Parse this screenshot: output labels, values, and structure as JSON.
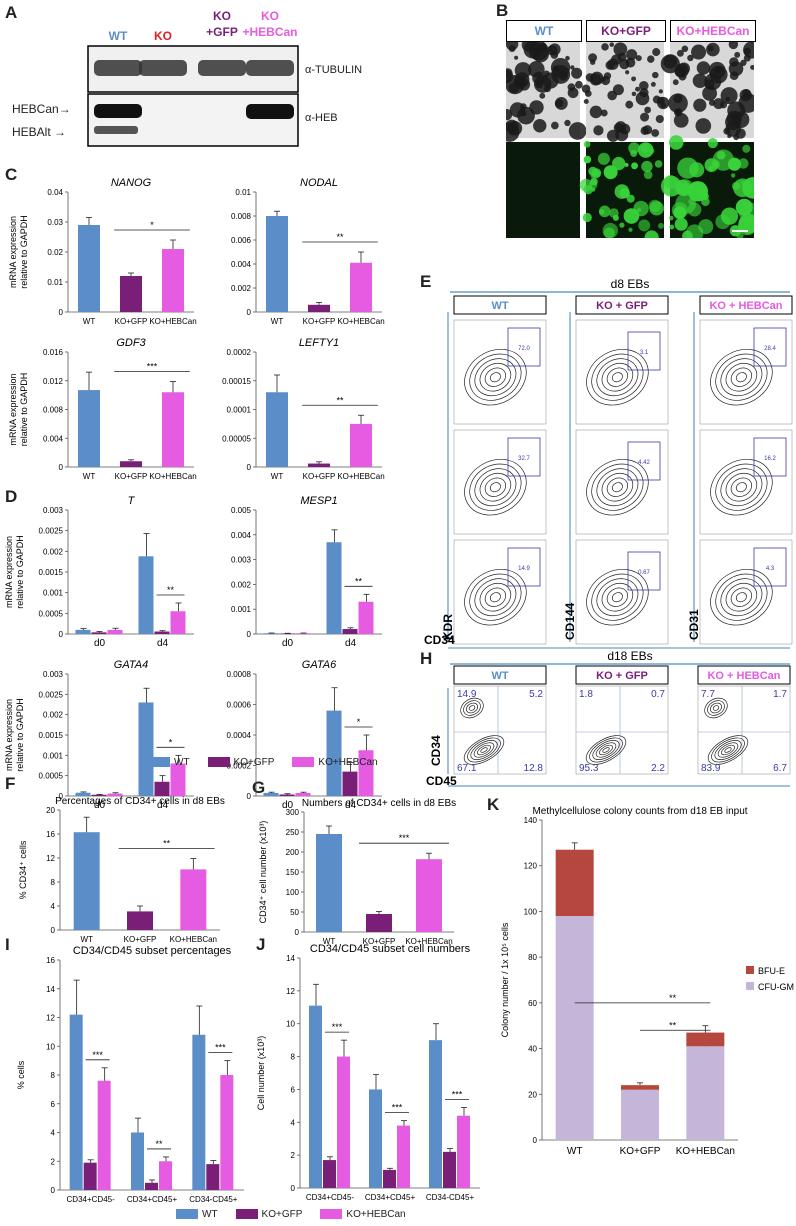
{
  "colors": {
    "wt": "#5b8ec9",
    "ko_gfp": "#7a1f78",
    "ko_hebcan": "#e55be1",
    "bfu": "#b5473f",
    "cfu": "#c5b5d8"
  },
  "panels": {
    "A": "A",
    "B": "B",
    "C": "C",
    "D": "D",
    "E": "E",
    "F": "F",
    "G": "G",
    "H": "H",
    "I": "I",
    "J": "J",
    "K": "K"
  },
  "panelA": {
    "lanes": [
      "WT",
      "KO",
      "KO\n+GFP",
      "KO\n+HEBCan"
    ],
    "lane_colors": [
      "#5b8ec9",
      "#e02020",
      "#7a1f78",
      "#e55be1"
    ],
    "antibodies": [
      "α-TUBULIN",
      "α-HEB"
    ],
    "bands": [
      "HEBCan",
      "HEBAlt"
    ]
  },
  "panelB": {
    "headers": [
      "WT",
      "KO+GFP",
      "KO+HEBCan"
    ]
  },
  "panelE": {
    "title": "d8 EBs",
    "headers": [
      "WT",
      "KO + GFP",
      "KO + HEBCan"
    ],
    "yaxes": [
      "KDR",
      "CD144",
      "CD31"
    ],
    "xaxis": "CD34",
    "gate_values": [
      [
        "72.0",
        "3.1",
        "28.4"
      ],
      [
        "32.7",
        "4.42",
        "16.2"
      ],
      [
        "14.9",
        "0.67",
        "4.3"
      ]
    ]
  },
  "panelH": {
    "title": "d18 EBs",
    "headers": [
      "WT",
      "KO + GFP",
      "KO + HEBCan"
    ],
    "yaxis": "CD34",
    "xaxis": "CD45",
    "quadrants": [
      [
        "14.9",
        "5.2",
        "67.1",
        "12.8"
      ],
      [
        "1.8",
        "0.7",
        "95.3",
        "2.2"
      ],
      [
        "7.7",
        "1.7",
        "83.9",
        "6.7"
      ]
    ]
  },
  "chart_data": [
    {
      "type": "bar",
      "title": "NANOG",
      "categories": [
        "WT",
        "KO+GFP",
        "KO+HEBCan"
      ],
      "values": [
        0.029,
        0.012,
        0.021
      ],
      "errors": [
        0.0025,
        0.001,
        0.003
      ],
      "ylim": [
        0,
        0.04
      ],
      "yticks": [
        "0",
        "0.01",
        "0.02",
        "0.03",
        "0.04"
      ],
      "ylabel": "mRNA expression relative to GAPDH",
      "sig": "*"
    },
    {
      "type": "bar",
      "title": "NODAL",
      "categories": [
        "WT",
        "KO+GFP",
        "KO+HEBCan"
      ],
      "values": [
        0.008,
        0.0006,
        0.0041
      ],
      "errors": [
        0.0004,
        0.0002,
        0.0009
      ],
      "ylim": [
        0,
        0.01
      ],
      "yticks": [
        "0",
        "0.002",
        "0.004",
        "0.006",
        "0.008",
        "0.01"
      ],
      "sig": "**"
    },
    {
      "type": "bar",
      "title": "GDF3",
      "categories": [
        "WT",
        "KO+GFP",
        "KO+HEBCan"
      ],
      "values": [
        0.0107,
        0.0008,
        0.0104
      ],
      "errors": [
        0.0025,
        0.0002,
        0.0015
      ],
      "ylim": [
        0,
        0.016
      ],
      "yticks": [
        "0",
        "0.004",
        "0.008",
        "0.012",
        "0.016"
      ],
      "ylabel": "mRNA expression relative to GAPDH",
      "sig": "***"
    },
    {
      "type": "bar",
      "title": "LEFTY1",
      "categories": [
        "WT",
        "KO+GFP",
        "KO+HEBCan"
      ],
      "values": [
        0.00013,
        6e-06,
        7.5e-05
      ],
      "errors": [
        3e-05,
        3e-06,
        1.5e-05
      ],
      "ylim": [
        0,
        0.0002
      ],
      "yticks": [
        "0",
        "0.00005",
        "0.0001",
        "0.00015",
        "0.0002"
      ],
      "sig": "**"
    },
    {
      "type": "bar",
      "title": "T",
      "categories": [
        "d0",
        "d4"
      ],
      "series": [
        {
          "name": "WT",
          "values": [
            0.0001,
            0.00188
          ],
          "errors": [
            3e-05,
            0.00055
          ]
        },
        {
          "name": "KO+GFP",
          "values": [
            4e-05,
            6e-05
          ],
          "errors": [
            2e-05,
            2e-05
          ]
        },
        {
          "name": "KO+HEBCan",
          "values": [
            0.0001,
            0.00055
          ],
          "errors": [
            4e-05,
            0.0002
          ]
        }
      ],
      "ylim": [
        0,
        0.003
      ],
      "yticks": [
        "0",
        "0.0005",
        "0.001",
        "0.0015",
        "0.002",
        "0.0025",
        "0.003"
      ],
      "ylabel": "mRNA expression relative to GAPDH",
      "sig": "**"
    },
    {
      "type": "bar",
      "title": "MESP1",
      "categories": [
        "d0",
        "d4"
      ],
      "series": [
        {
          "name": "WT",
          "values": [
            3e-05,
            0.0037
          ],
          "errors": [
            1e-05,
            0.0005
          ]
        },
        {
          "name": "KO+GFP",
          "values": [
            2e-05,
            0.0002
          ],
          "errors": [
            1e-05,
            5e-05
          ]
        },
        {
          "name": "KO+HEBCan",
          "values": [
            3e-05,
            0.0013
          ],
          "errors": [
            1e-05,
            0.0003
          ]
        }
      ],
      "ylim": [
        0,
        0.005
      ],
      "yticks": [
        "0",
        "0.001",
        "0.002",
        "0.003",
        "0.004",
        "0.005"
      ],
      "sig": "**"
    },
    {
      "type": "bar",
      "title": "GATA4",
      "categories": [
        "d0",
        "d4"
      ],
      "series": [
        {
          "name": "WT",
          "values": [
            8e-05,
            0.0023
          ],
          "errors": [
            2e-05,
            0.00035
          ]
        },
        {
          "name": "KO+GFP",
          "values": [
            3e-05,
            0.00035
          ],
          "errors": [
            1e-05,
            0.00015
          ]
        },
        {
          "name": "KO+HEBCan",
          "values": [
            6e-05,
            0.0008
          ],
          "errors": [
            2e-05,
            0.0002
          ]
        }
      ],
      "ylim": [
        0,
        0.003
      ],
      "yticks": [
        "0",
        "0.0005",
        "0.001",
        "0.0015",
        "0.002",
        "0.0025",
        "0.003"
      ],
      "ylabel": "mRNA expression relative to GAPDH",
      "sig": "*"
    },
    {
      "type": "bar",
      "title": "GATA6",
      "categories": [
        "d0",
        "d4"
      ],
      "series": [
        {
          "name": "WT",
          "values": [
            2e-05,
            0.00056
          ],
          "errors": [
            5e-06,
            0.00015
          ]
        },
        {
          "name": "KO+GFP",
          "values": [
            1e-05,
            0.00016
          ],
          "errors": [
            5e-06,
            6e-05
          ]
        },
        {
          "name": "KO+HEBCan",
          "values": [
            2e-05,
            0.0003
          ],
          "errors": [
            5e-06,
            0.0001
          ]
        }
      ],
      "ylim": [
        0,
        0.0008
      ],
      "yticks": [
        "0",
        "0.0002",
        "0.0004",
        "0.0006",
        "0.0008"
      ],
      "sig": "*"
    },
    {
      "type": "bar",
      "title": "Percentages of CD34+ cells in d8 EBs",
      "categories": [
        "WT",
        "KO+GFP",
        "KO+HEBCan"
      ],
      "values": [
        16.3,
        3.1,
        10.1
      ],
      "errors": [
        2.5,
        0.9,
        1.8
      ],
      "ylim": [
        0,
        20
      ],
      "yticks": [
        "0",
        "4",
        "8",
        "12",
        "16",
        "20"
      ],
      "ylabel": "% CD34⁺ cells",
      "sig": "**"
    },
    {
      "type": "bar",
      "title": "Numbers of CD34+ cells in d8 EBs",
      "categories": [
        "WT",
        "KO+GFP",
        "KO+HEBCan"
      ],
      "values": [
        245,
        45,
        182
      ],
      "errors": [
        20,
        6,
        15
      ],
      "ylim": [
        0,
        300
      ],
      "yticks": [
        "0",
        "50",
        "100",
        "150",
        "200",
        "250",
        "300"
      ],
      "ylabel": "CD34⁺ cell number (x10³)",
      "sig": "***"
    },
    {
      "type": "bar",
      "title": "CD34/CD45 subset percentages",
      "categories": [
        "CD34+CD45-",
        "CD34+CD45+",
        "CD34-CD45+"
      ],
      "series": [
        {
          "name": "WT",
          "values": [
            12.2,
            4.0,
            10.8
          ],
          "errors": [
            2.4,
            1.0,
            2.0
          ]
        },
        {
          "name": "KO+GFP",
          "values": [
            1.9,
            0.5,
            1.8
          ],
          "errors": [
            0.2,
            0.2,
            0.25
          ]
        },
        {
          "name": "KO+HEBCan",
          "values": [
            7.6,
            2.0,
            8.0
          ],
          "errors": [
            0.9,
            0.3,
            1.0
          ]
        }
      ],
      "ylim": [
        0,
        16
      ],
      "yticks": [
        "0",
        "2",
        "4",
        "6",
        "8",
        "10",
        "12",
        "14",
        "16"
      ],
      "ylabel": "% cells",
      "sigs": [
        "***",
        "**",
        "***"
      ]
    },
    {
      "type": "bar",
      "title": "CD34/CD45 subset cell numbers",
      "categories": [
        "CD34+CD45-",
        "CD34+CD45+",
        "CD34-CD45+"
      ],
      "series": [
        {
          "name": "WT",
          "values": [
            11.1,
            6.0,
            9.0
          ],
          "errors": [
            1.3,
            0.9,
            1.0
          ]
        },
        {
          "name": "KO+GFP",
          "values": [
            1.7,
            1.1,
            2.2
          ],
          "errors": [
            0.2,
            0.1,
            0.2
          ]
        },
        {
          "name": "KO+HEBCan",
          "values": [
            8.0,
            3.8,
            4.4
          ],
          "errors": [
            1.0,
            0.3,
            0.5
          ]
        }
      ],
      "ylim": [
        0,
        14
      ],
      "yticks": [
        "0",
        "2",
        "4",
        "6",
        "8",
        "10",
        "12",
        "14"
      ],
      "ylabel": "Cell number (x10³)",
      "sigs": [
        "***",
        "***",
        "***"
      ]
    },
    {
      "type": "bar",
      "stacked": true,
      "title": "Methylcellulose colony counts from d18 EB input",
      "categories": [
        "WT",
        "KO+GFP",
        "KO+HEBCan"
      ],
      "series": [
        {
          "name": "CFU-GM",
          "values": [
            98,
            22,
            41
          ],
          "errors": [
            2,
            1,
            2
          ]
        },
        {
          "name": "BFU-E",
          "values": [
            29,
            2,
            6
          ],
          "errors": [
            3,
            1,
            3
          ]
        }
      ],
      "ylim": [
        0,
        140
      ],
      "yticks": [
        "0",
        "20",
        "40",
        "60",
        "80",
        "100",
        "120",
        "140"
      ],
      "ylabel": "Colony number / 1x 10⁵ cells",
      "sigs": [
        "**",
        "**"
      ]
    }
  ],
  "legends": {
    "groups": [
      "WT",
      "KO+GFP",
      "KO+HEBCan"
    ],
    "stack": [
      "BFU-E",
      "CFU-GM"
    ]
  }
}
